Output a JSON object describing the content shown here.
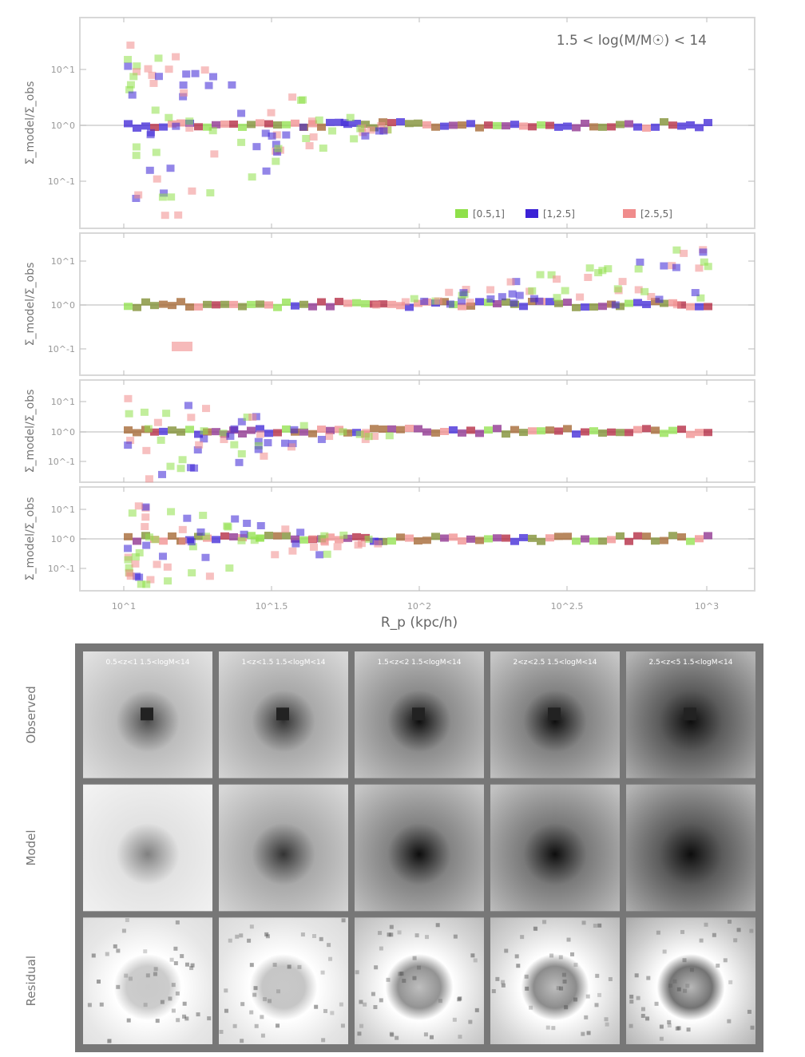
{
  "figure": {
    "annotation": "1.5 < log(M/M☉) < 14",
    "xlabel": "R_p (kpc/h)",
    "legend": [
      {
        "label": "[0.5,1]",
        "color": "#8fe04a"
      },
      {
        "label": "[1,2.5]",
        "color": "#3b22d6"
      },
      {
        "label": "[2.5,5]",
        "color": "#f08c8c"
      }
    ],
    "colors": {
      "green": "#8fe04a",
      "blue": "#3b22d6",
      "red": "#f08c8c",
      "purple": "#8a2a8a",
      "darkred": "#b0203a",
      "olive": "#7a8a2a",
      "brown": "#a0602a"
    }
  },
  "chart_data": [
    {
      "type": "scatter",
      "panel": "top",
      "ylabel": "Σ_model/Σ_obs",
      "yticks": [
        "10^1",
        "10^0",
        "10^-1"
      ],
      "xscale": "log",
      "yscale": "log",
      "xlim": [
        8,
        1200
      ],
      "ylim": [
        0.02,
        30
      ],
      "xticks": [
        "10^1",
        "10^1.5",
        "10^2",
        "10^2.5",
        "10^3"
      ],
      "series": [
        {
          "name": "[0.5,1]",
          "color": "#8fe04a"
        },
        {
          "name": "[1,2.5]",
          "color": "#3b22d6"
        },
        {
          "name": "[2.5,5]",
          "color": "#f08c8c"
        }
      ]
    },
    {
      "type": "scatter",
      "panel": "second",
      "ylabel": "Σ_model/Σ_obs",
      "yticks": [
        "10^1",
        "10^0",
        "10^-1"
      ],
      "yscale": "log",
      "ylim": [
        0.03,
        30
      ]
    },
    {
      "type": "scatter",
      "panel": "third",
      "ylabel": "Σ_model/Σ_obs",
      "yticks": [
        "10^1",
        "10^0",
        "10^-1"
      ],
      "yscale": "log",
      "ylim": [
        0.05,
        20
      ]
    },
    {
      "type": "scatter",
      "panel": "bottom",
      "ylabel": "Σ_model/Σ_obs",
      "yticks": [
        "10^1",
        "10^0",
        "10^-1"
      ],
      "yscale": "log",
      "ylim": [
        0.05,
        20
      ]
    }
  ],
  "image_grid": {
    "row_labels": [
      "Observed",
      "Model",
      "Residual"
    ],
    "column_headers": [
      "0.5<z<1 1.5<logM<14",
      "1<z<1.5 1.5<logM<14",
      "1.5<z<2 1.5<logM<14",
      "2<z<2.5 1.5<logM<14",
      "2.5<z<5 1.5<logM<14"
    ],
    "observed_darkness": [
      0.35,
      0.45,
      0.6,
      0.65,
      0.85
    ],
    "model_darkness": [
      0.15,
      0.45,
      0.65,
      0.7,
      0.85
    ],
    "residual_ring": [
      0.1,
      0.15,
      0.55,
      0.6,
      0.8
    ]
  }
}
